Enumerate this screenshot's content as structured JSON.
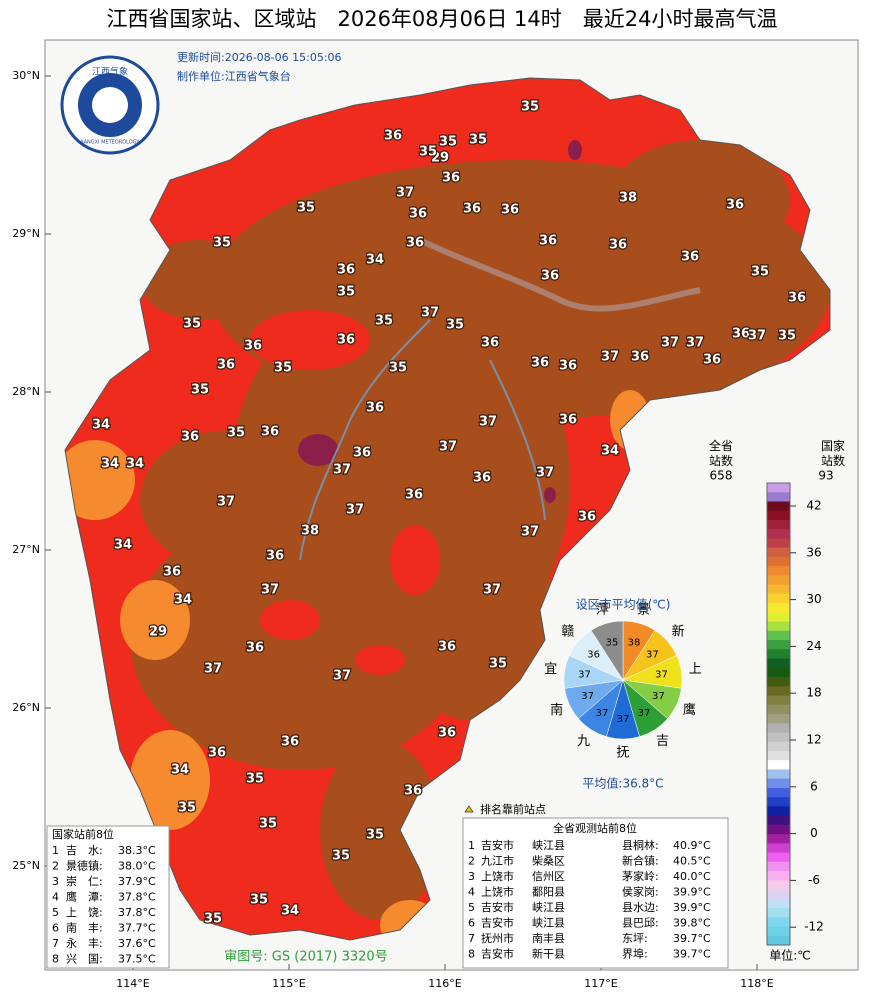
{
  "header": {
    "title": "江西省国家站、区域站　2026年08月06日 14时　最近24小时最高气温",
    "update_time": "更新时间:2026-08-06 15:05:06",
    "producer": "制作单位:江西省气象台",
    "logo_cn": "江西气象",
    "logo_en": "JIANGXI METEOROLOGY"
  },
  "axes": {
    "lat_labels": [
      "30°N",
      "29°N",
      "28°N",
      "27°N",
      "26°N",
      "25°N"
    ],
    "lon_labels": [
      "114°E",
      "115°E",
      "116°E",
      "117°E",
      "118°E"
    ]
  },
  "stations": [
    35,
    36,
    35,
    35,
    29,
    35,
    36,
    37,
    36,
    38,
    35,
    36,
    36,
    36,
    35,
    36,
    36,
    36,
    36,
    35,
    36,
    34,
    36,
    35,
    36,
    35,
    35,
    37,
    35,
    36,
    37,
    36,
    37,
    36,
    37,
    35,
    37,
    36,
    36,
    36,
    36,
    35,
    35,
    36,
    36,
    35,
    34,
    36,
    37,
    36,
    36,
    35,
    36,
    34,
    34,
    37,
    36,
    37,
    36,
    37,
    34,
    36,
    37,
    37,
    37,
    36,
    34,
    38,
    36,
    36,
    34,
    37,
    37,
    29,
    36,
    36,
    37,
    37,
    35,
    36,
    36,
    36,
    34,
    35,
    36,
    35,
    35,
    35,
    35,
    35,
    34,
    35
  ],
  "top_marker_note": "排名靠前站点",
  "pie": {
    "title": "设区市平均值(℃)",
    "average": "平均值:36.8°C",
    "slices": [
      {
        "name": "景",
        "value": 38,
        "color": "#f28a26"
      },
      {
        "name": "新",
        "value": 37,
        "color": "#f6c21c"
      },
      {
        "name": "上",
        "value": 37,
        "color": "#f0e21a"
      },
      {
        "name": "鹰",
        "value": 37,
        "color": "#86cd46"
      },
      {
        "name": "吉",
        "value": 37,
        "color": "#2e9e36"
      },
      {
        "name": "抚",
        "value": 37,
        "color": "#1f6bd6"
      },
      {
        "name": "九",
        "value": 37,
        "color": "#3d85e3"
      },
      {
        "name": "南",
        "value": 37,
        "color": "#6eaaee"
      },
      {
        "name": "宜",
        "value": 37,
        "color": "#a9d5f6"
      },
      {
        "name": "赣",
        "value": 36,
        "color": "#dbeefa"
      },
      {
        "name": "萍",
        "value": 35,
        "color": "#8c8c8c"
      }
    ]
  },
  "legend": {
    "all_label": "全省\n站数",
    "all_count": "658",
    "nat_label": "国家\n站数",
    "nat_count": "93",
    "ticks": [
      42,
      36,
      30,
      24,
      18,
      12,
      6,
      0,
      -6,
      -12
    ],
    "unit": "单位:℃"
  },
  "national_top": {
    "title": "国家站前8位",
    "rows": [
      [
        "1",
        "吉　水:",
        "38.3°C"
      ],
      [
        "2",
        "景德镇:",
        "38.0°C"
      ],
      [
        "3",
        "崇　仁:",
        "37.9°C"
      ],
      [
        "4",
        "鹰　潭:",
        "37.8°C"
      ],
      [
        "5",
        "上　饶:",
        "37.8°C"
      ],
      [
        "6",
        "南　丰:",
        "37.7°C"
      ],
      [
        "7",
        "永　丰:",
        "37.6°C"
      ],
      [
        "8",
        "兴　国:",
        "37.5°C"
      ]
    ]
  },
  "all_top": {
    "title": "全省观测站前8位",
    "rows": [
      [
        "1",
        "吉安市",
        "峡江县",
        "县桐林:",
        "40.9°C"
      ],
      [
        "2",
        "九江市",
        "柴桑区",
        "新合镇:",
        "40.5°C"
      ],
      [
        "3",
        "上饶市",
        "信州区",
        "茅家岭:",
        "40.0°C"
      ],
      [
        "4",
        "上饶市",
        "鄱阳县",
        "侯家岗:",
        "39.9°C"
      ],
      [
        "5",
        "吉安市",
        "峡江县",
        "县水边:",
        "39.9°C"
      ],
      [
        "6",
        "吉安市",
        "峡江县",
        "县巴邱:",
        "39.8°C"
      ],
      [
        "7",
        "抚州市",
        "南丰县",
        "东坪:",
        "39.7°C"
      ],
      [
        "8",
        "吉安市",
        "新干县",
        "界埠:",
        "39.7°C"
      ]
    ]
  },
  "review_no": "审图号: GS (2017) 3320号"
}
